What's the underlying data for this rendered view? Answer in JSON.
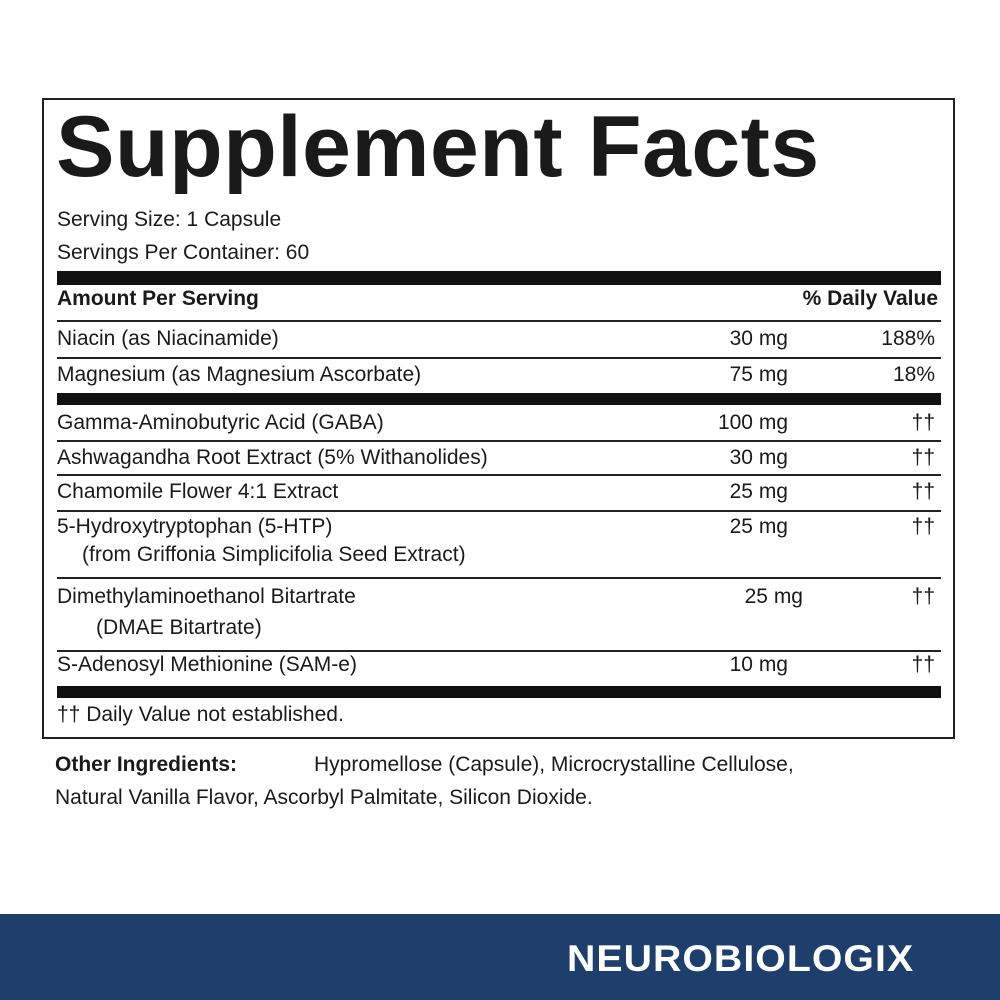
{
  "label": {
    "title": "Supplement Facts",
    "serving_size": "Serving Size: 1 Capsule",
    "servings_per_container": "Servings Per Container: 60",
    "header_amount": "Amount Per Serving",
    "header_dv": "% Daily Value",
    "rows": [
      {
        "name": "Niacin (as Niacinamide)",
        "amount": "30 mg",
        "dv": "188%"
      },
      {
        "name": "Magnesium (as Magnesium Ascorbate)",
        "amount": "75 mg",
        "dv": "18%"
      },
      {
        "name": "Gamma-Aminobutyric Acid (GABA)",
        "amount": "100 mg",
        "dv": "††"
      },
      {
        "name": "Ashwagandha Root Extract (5% Withanolides)",
        "amount": "30 mg",
        "dv": "††"
      },
      {
        "name": "Chamomile Flower 4:1 Extract",
        "amount": "25 mg",
        "dv": "††"
      },
      {
        "name": "5-Hydroxytryptophan (5-HTP)",
        "sub": "(from Griffonia Simplicifolia Seed Extract)",
        "amount": "25 mg",
        "dv": "††"
      },
      {
        "name": "Dimethylaminoethanol Bitartrate",
        "sub": "(DMAE Bitartrate)",
        "amount": "25 mg",
        "dv": "††"
      },
      {
        "name": "S-Adenosyl Methionine (SAM-e)",
        "amount": "10 mg",
        "dv": "††"
      }
    ],
    "footnote": "†† Daily Value not established."
  },
  "other_ingredients": {
    "label": "Other Ingredients:",
    "line1": "Hypromellose (Capsule), Microcrystalline Cellulose,",
    "line2": "Natural Vanilla Flavor, Ascorbyl Palmitate, Silicon Dioxide."
  },
  "brand": {
    "name": "NEUROBIOLOGIX",
    "band_color": "#1e3f6b"
  }
}
